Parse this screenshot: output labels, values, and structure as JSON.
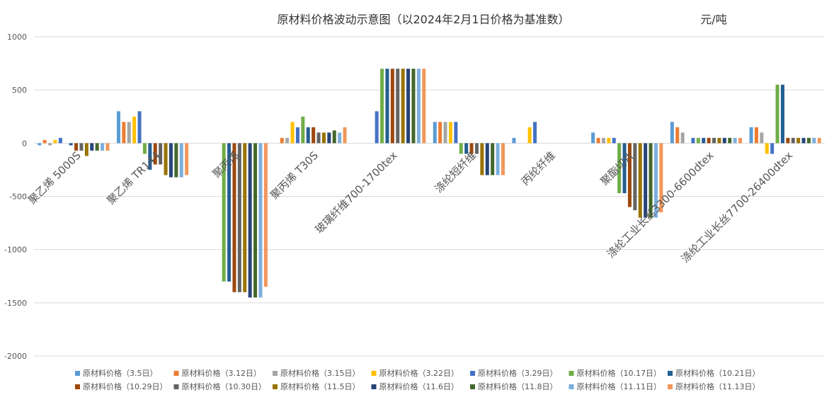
{
  "chart_data": {
    "type": "bar",
    "title": "原材料价格波动示意图（以2024年2月1日价格为基准数）",
    "unit_label": "元/吨",
    "ylim": [
      -2000,
      1000
    ],
    "yticks": [
      1000,
      500,
      0,
      -500,
      -1000,
      -1500,
      -2000
    ],
    "grid": true,
    "legend_position": "bottom",
    "categories": [
      "聚乙烯  5000S",
      "聚乙烯 TR144",
      "聚丙烯",
      "聚丙烯 T30S",
      "玻璃纤维700-1700tex",
      "涤纶短纤维",
      "丙纶纤维",
      "聚酯切片",
      "涤纶工业长丝3300-6600dtex",
      "涤纶工业长丝7700-26400dtex"
    ],
    "series": [
      {
        "name": "原材料价格（3.5日）",
        "color": "#5B9BD5",
        "values": [
          -20,
          300,
          0,
          0,
          0,
          200,
          50,
          100,
          200,
          150
        ]
      },
      {
        "name": "原材料价格（3.12日）",
        "color": "#ED7D31",
        "values": [
          30,
          200,
          0,
          50,
          0,
          200,
          0,
          50,
          150,
          150
        ]
      },
      {
        "name": "原材料价格（3.15日）",
        "color": "#A5A5A5",
        "values": [
          -20,
          200,
          0,
          50,
          0,
          200,
          0,
          50,
          100,
          100
        ]
      },
      {
        "name": "原材料价格（3.22日）",
        "color": "#FFC000",
        "values": [
          30,
          250,
          0,
          200,
          0,
          200,
          150,
          50,
          0,
          -100
        ]
      },
      {
        "name": "原材料价格（3.29日）",
        "color": "#4472C4",
        "values": [
          50,
          300,
          0,
          150,
          300,
          200,
          200,
          50,
          50,
          -100
        ]
      },
      {
        "name": "原材料价格（10.17日）",
        "color": "#70AD47",
        "values": [
          0,
          -100,
          -1300,
          250,
          700,
          -100,
          0,
          -470,
          50,
          550
        ]
      },
      {
        "name": "原材料价格（10.21日）",
        "color": "#255E91",
        "values": [
          -20,
          -250,
          -1300,
          150,
          700,
          -100,
          0,
          -470,
          50,
          550
        ]
      },
      {
        "name": "原材料价格（10.29日）",
        "color": "#9E480E",
        "values": [
          -70,
          -200,
          -1400,
          150,
          700,
          -100,
          0,
          -600,
          50,
          50
        ]
      },
      {
        "name": "原材料价格（10.30日）",
        "color": "#636363",
        "values": [
          -70,
          -200,
          -1400,
          100,
          700,
          -100,
          0,
          -630,
          50,
          50
        ]
      },
      {
        "name": "原材料价格（11.5日）",
        "color": "#997300",
        "values": [
          -120,
          -300,
          -1400,
          100,
          700,
          -300,
          0,
          -700,
          50,
          50
        ]
      },
      {
        "name": "原材料价格（11.6日）",
        "color": "#264478",
        "values": [
          -70,
          -320,
          -1450,
          100,
          700,
          -300,
          0,
          -700,
          50,
          50
        ]
      },
      {
        "name": "原材料价格（11.8日）",
        "color": "#43682B",
        "values": [
          -70,
          -320,
          -1450,
          120,
          700,
          -300,
          0,
          -700,
          50,
          50
        ]
      },
      {
        "name": "原材料价格（11.11日）",
        "color": "#7CAFDD",
        "values": [
          -70,
          -320,
          -1450,
          100,
          700,
          -300,
          0,
          -700,
          50,
          50
        ]
      },
      {
        "name": "原材料价格（11.13日）",
        "color": "#F1975A",
        "values": [
          -70,
          -300,
          -1350,
          150,
          700,
          -300,
          0,
          -650,
          50,
          50
        ]
      }
    ]
  }
}
